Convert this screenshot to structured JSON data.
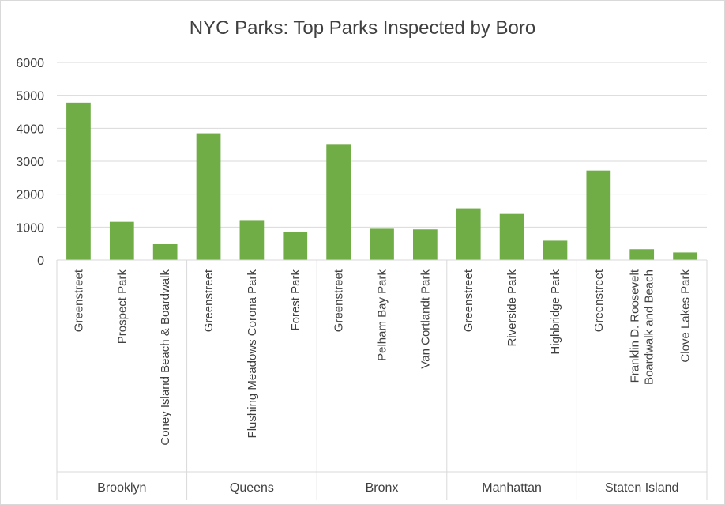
{
  "chart_data": {
    "type": "bar",
    "title": "NYC Parks: Top Parks Inspected by Boro",
    "xlabel": "",
    "ylabel": "",
    "ylim": [
      0,
      6000
    ],
    "yticks": [
      0,
      1000,
      2000,
      3000,
      4000,
      5000,
      6000
    ],
    "grid": true,
    "legend": "none",
    "bar_color": "#70ad47",
    "groups": [
      {
        "name": "Brooklyn",
        "categories": [
          "Greenstreet",
          "Prospect Park",
          "Coney Island Beach & Boardwalk"
        ],
        "values": [
          4780,
          1160,
          480
        ]
      },
      {
        "name": "Queens",
        "categories": [
          "Greenstreet",
          "Flushing Meadows Corona Park",
          "Forest Park"
        ],
        "values": [
          3850,
          1190,
          850
        ]
      },
      {
        "name": "Bronx",
        "categories": [
          "Greenstreet",
          "Pelham Bay Park",
          "Van Cortlandt Park"
        ],
        "values": [
          3520,
          950,
          930
        ]
      },
      {
        "name": "Manhattan",
        "categories": [
          "Greenstreet",
          "Riverside Park",
          "Highbridge Park"
        ],
        "values": [
          1570,
          1400,
          590
        ]
      },
      {
        "name": "Staten Island",
        "categories": [
          "Greenstreet",
          "Franklin D. Roosevelt Boardwalk and Beach",
          "Clove Lakes Park"
        ],
        "values": [
          2720,
          330,
          230
        ]
      }
    ]
  }
}
